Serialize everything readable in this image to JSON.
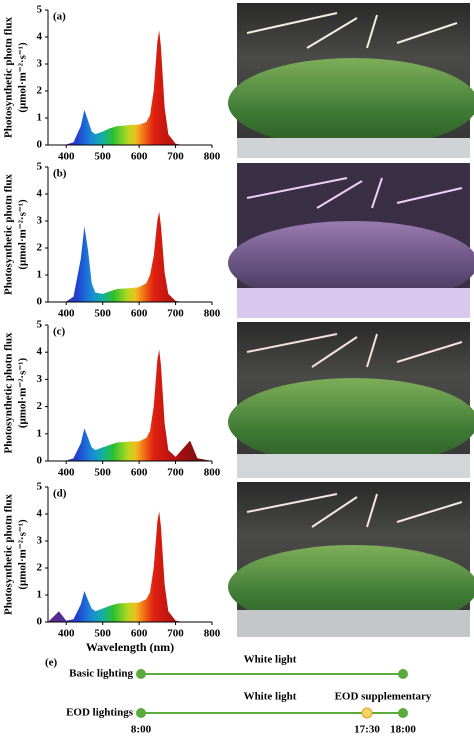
{
  "chart_data": [
    {
      "type": "area",
      "panel_label": "(a)",
      "ylabel": [
        "Photosynthetic photn flux",
        "(μmol·m⁻²·s⁻¹)"
      ],
      "x": [
        350,
        380,
        400,
        420,
        440,
        450,
        460,
        470,
        480,
        500,
        520,
        540,
        560,
        580,
        600,
        620,
        630,
        640,
        650,
        655,
        660,
        670,
        680,
        700,
        720,
        740,
        760,
        800
      ],
      "values": [
        0,
        0,
        0.02,
        0.1,
        0.7,
        1.3,
        0.9,
        0.5,
        0.4,
        0.5,
        0.62,
        0.7,
        0.72,
        0.75,
        0.75,
        0.85,
        1.1,
        2.0,
        3.8,
        4.25,
        3.6,
        1.4,
        0.4,
        0.05,
        0,
        0,
        0,
        0
      ],
      "xlim": [
        350,
        800
      ],
      "xticks": [
        400,
        500,
        600,
        700,
        800
      ],
      "ylim": [
        0,
        5
      ],
      "yticks": [
        0,
        1,
        2,
        3,
        4,
        5
      ]
    },
    {
      "type": "area",
      "panel_label": "(b)",
      "ylabel": [
        "Photosynthetic photn flux",
        "(μmol·m⁻²·s⁻¹)"
      ],
      "x": [
        350,
        380,
        400,
        420,
        440,
        450,
        460,
        470,
        480,
        500,
        520,
        540,
        560,
        580,
        600,
        620,
        630,
        640,
        650,
        655,
        660,
        670,
        680,
        700,
        720,
        740,
        760,
        800
      ],
      "values": [
        0,
        0,
        0.02,
        0.2,
        1.6,
        2.8,
        1.9,
        0.7,
        0.35,
        0.3,
        0.4,
        0.48,
        0.5,
        0.52,
        0.55,
        0.7,
        1.0,
        1.7,
        3.0,
        3.35,
        2.8,
        1.1,
        0.3,
        0.04,
        0,
        0,
        0,
        0
      ],
      "xlim": [
        350,
        800
      ],
      "xticks": [
        400,
        500,
        600,
        700,
        800
      ],
      "ylim": [
        0,
        5
      ],
      "yticks": [
        0,
        1,
        2,
        3,
        4,
        5
      ]
    },
    {
      "type": "area",
      "panel_label": "(c)",
      "ylabel": [
        "Photosynthetic photn flux",
        "(μmol·m⁻²·s⁻¹)"
      ],
      "x": [
        350,
        380,
        400,
        420,
        440,
        450,
        460,
        470,
        480,
        500,
        520,
        540,
        560,
        580,
        600,
        620,
        630,
        640,
        650,
        655,
        660,
        670,
        680,
        700,
        720,
        740,
        760,
        800
      ],
      "values": [
        0,
        0,
        0.02,
        0.1,
        0.65,
        1.2,
        0.85,
        0.5,
        0.4,
        0.5,
        0.6,
        0.68,
        0.7,
        0.72,
        0.72,
        0.85,
        1.1,
        2.0,
        3.7,
        4.1,
        3.5,
        1.4,
        0.4,
        0.15,
        0.45,
        0.75,
        0.1,
        0
      ],
      "xlim": [
        350,
        800
      ],
      "xticks": [
        400,
        500,
        600,
        700,
        800
      ],
      "ylim": [
        0,
        5
      ],
      "yticks": [
        0,
        1,
        2,
        3,
        4,
        5
      ]
    },
    {
      "type": "area",
      "panel_label": "(d)",
      "ylabel": [
        "Photosynthetic photn flux",
        "(μmol·m⁻²·s⁻¹)"
      ],
      "xlabel": "Wavelength (nm)",
      "x": [
        350,
        380,
        400,
        420,
        440,
        450,
        460,
        470,
        480,
        500,
        520,
        540,
        560,
        580,
        600,
        620,
        630,
        640,
        650,
        655,
        660,
        670,
        680,
        700,
        720,
        740,
        760,
        800
      ],
      "values": [
        0,
        0.4,
        0.05,
        0.1,
        0.65,
        1.15,
        0.8,
        0.5,
        0.4,
        0.5,
        0.6,
        0.68,
        0.7,
        0.72,
        0.72,
        0.85,
        1.1,
        2.0,
        3.7,
        4.1,
        3.5,
        1.4,
        0.4,
        0.05,
        0,
        0,
        0,
        0
      ],
      "xlim": [
        350,
        800
      ],
      "xticks": [
        400,
        500,
        600,
        700,
        800
      ],
      "ylim": [
        0,
        5
      ],
      "yticks": [
        0,
        1,
        2,
        3,
        4,
        5
      ]
    }
  ],
  "timeline": {
    "panel_label": "(e)",
    "rows": [
      {
        "name": "Basic lighting",
        "segments": [
          "White light"
        ]
      },
      {
        "name": "EOD lightings",
        "segments": [
          "White light",
          "EOD supplementary"
        ]
      }
    ],
    "times": [
      "8:00",
      "17:30",
      "18:00"
    ]
  }
}
